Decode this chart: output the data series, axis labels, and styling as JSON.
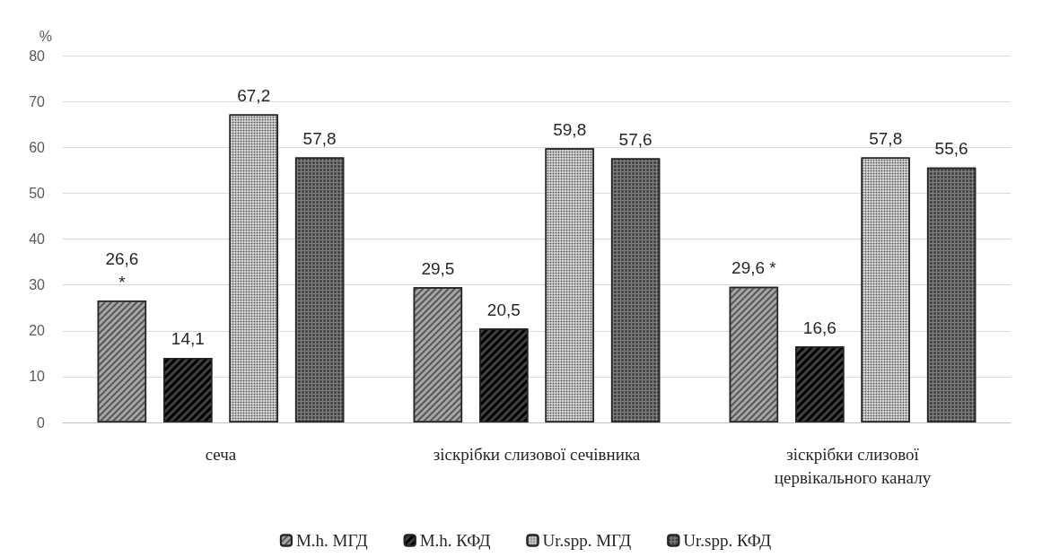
{
  "chart_data": {
    "type": "bar",
    "ylabel": "%",
    "categories": [
      "сеча",
      "зіскрібки слизової сечівника",
      "зіскрібки слизової\nцервікального каналу"
    ],
    "series": [
      {
        "name": "M.h. МГД",
        "color": "#a6a6a6",
        "values": [
          26.6,
          29.5,
          29.6
        ],
        "value_labels": [
          "26,6\n*",
          "29,5",
          "29,6 *"
        ]
      },
      {
        "name": "M.h. КФД",
        "color": "#404040",
        "values": [
          14.1,
          20.5,
          16.6
        ],
        "value_labels": [
          "14,1",
          "20,5",
          "16,6"
        ]
      },
      {
        "name": "Ur.spp. МГД",
        "color": "#d9d9d9",
        "values": [
          67.2,
          59.8,
          57.8
        ],
        "value_labels": [
          "67,2",
          "59,8",
          "57,8"
        ]
      },
      {
        "name": "Ur.spp. КФД",
        "color": "#7f7f7f",
        "values": [
          57.8,
          57.6,
          55.6
        ],
        "value_labels": [
          "57,8",
          "57,6",
          "55,6"
        ]
      }
    ],
    "ylim": [
      0,
      80
    ],
    "yticks": [
      0,
      10,
      20,
      30,
      40,
      50,
      60,
      70,
      80
    ],
    "grid": "y",
    "legend": "bottom"
  }
}
